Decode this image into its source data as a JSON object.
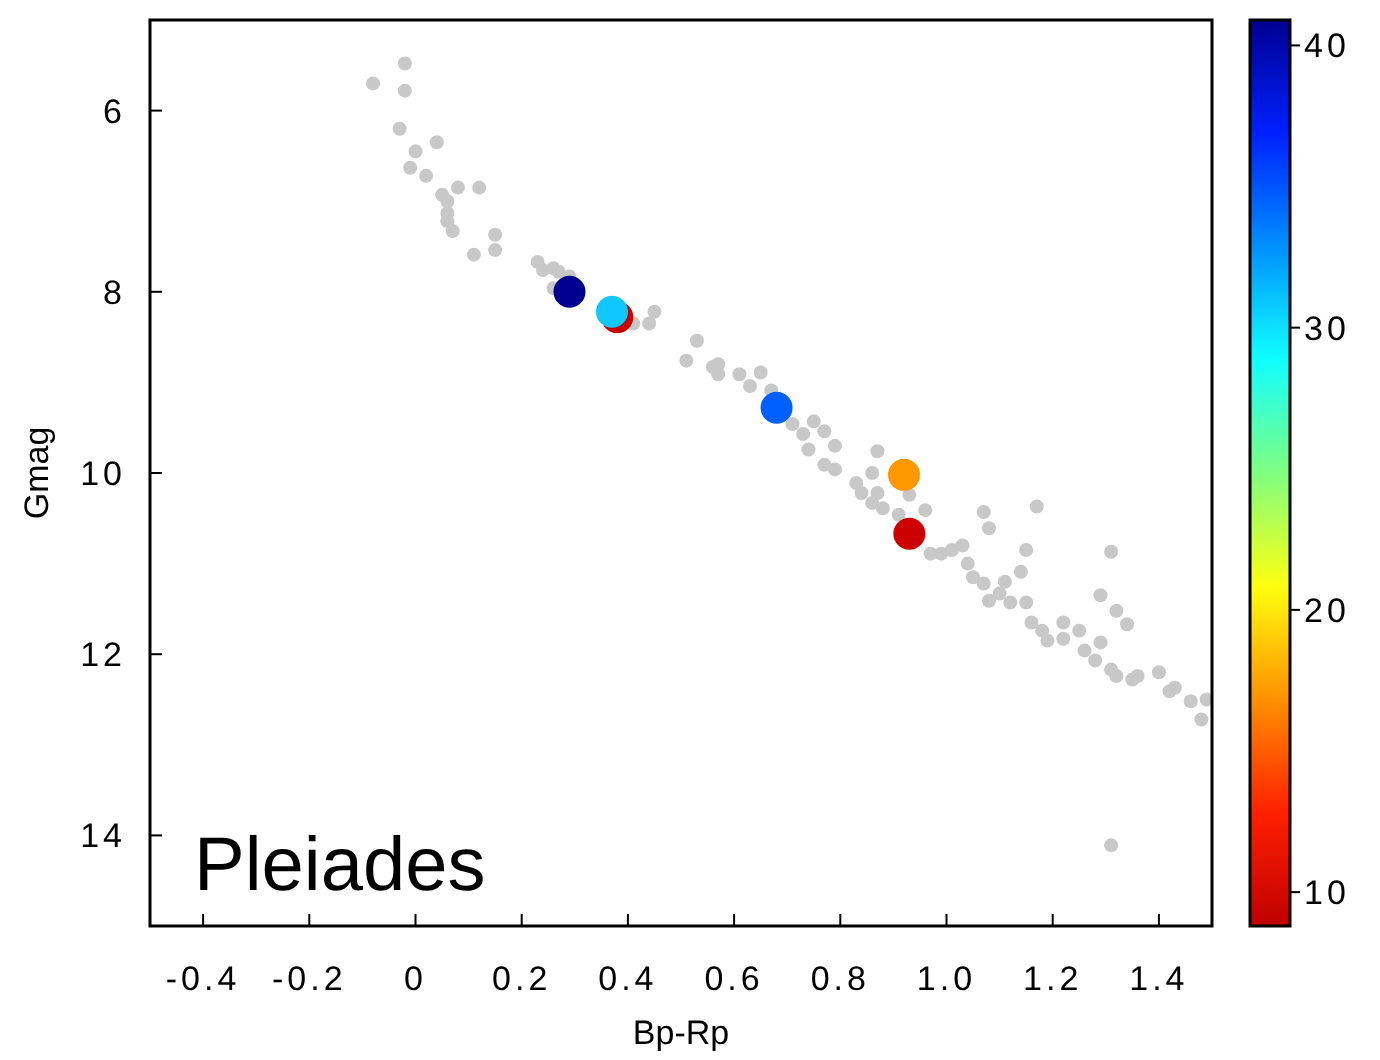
{
  "chart_data": {
    "type": "scatter",
    "xlabel": "Bp-Rp",
    "ylabel": "Gmag",
    "xlim": [
      -0.5,
      1.5
    ],
    "ylim": [
      15,
      5
    ],
    "xticks": [
      {
        "value": -0.4,
        "label": "-0.4"
      },
      {
        "value": -0.2,
        "label": "-0.2"
      },
      0,
      {
        "value": 0.2,
        "label": "0.2"
      },
      {
        "value": 0.4,
        "label": "0.4"
      },
      {
        "value": 0.6,
        "label": "0.6"
      },
      {
        "value": 0.8,
        "label": "0.8"
      },
      {
        "value": 1,
        "label": "1.0"
      },
      {
        "value": 1.2,
        "label": "1.2"
      },
      {
        "value": 1.4,
        "label": "1.4"
      }
    ],
    "yticks": [
      6,
      8,
      10,
      12,
      14
    ],
    "clim": [
      8.8,
      40.9
    ],
    "cticks": [
      10,
      20,
      30,
      40
    ],
    "marker": "circle",
    "grid": false,
    "annotations": [
      "Pleiades"
    ],
    "series": [
      {
        "color": "#c8c8c8",
        "x": [
          -0.08,
          -0.02,
          -0.02,
          -0.03,
          0.0,
          0.04,
          -0.01,
          0.02,
          0.08,
          0.12,
          0.05,
          0.06,
          0.06,
          0.06,
          0.07,
          0.15,
          0.11,
          0.15,
          0.23,
          0.24,
          0.26,
          0.27,
          0.29,
          0.26,
          0.41,
          0.44,
          0.45,
          0.53,
          0.51,
          0.56,
          0.57,
          0.57,
          0.61,
          0.65,
          0.63,
          0.67,
          0.71,
          0.73,
          0.75,
          0.77,
          0.79,
          0.74,
          0.77,
          0.79,
          0.87,
          0.86,
          0.83,
          0.84,
          0.86,
          0.88,
          0.87,
          0.91,
          0.93,
          0.96,
          0.97,
          0.99,
          1.01,
          1.03,
          1.04,
          1.05,
          1.07,
          1.07,
          1.08,
          1.11,
          1.1,
          1.08,
          1.14,
          1.15,
          1.17,
          1.12,
          1.15,
          1.16,
          1.18,
          1.19,
          1.22,
          1.22,
          1.25,
          1.26,
          1.29,
          1.28,
          1.29,
          1.31,
          1.32,
          1.34,
          1.31,
          1.32,
          1.35,
          1.36,
          1.4,
          1.42,
          1.43,
          1.46,
          1.49,
          1.48,
          1.31
        ],
        "values": [
          5.7,
          5.48,
          5.78,
          6.2,
          6.45,
          6.35,
          6.63,
          6.72,
          6.85,
          6.85,
          6.93,
          7.0,
          7.13,
          7.22,
          7.33,
          7.37,
          7.59,
          7.54,
          7.67,
          7.76,
          7.74,
          7.78,
          7.83,
          7.96,
          8.35,
          8.35,
          8.22,
          8.54,
          8.76,
          8.83,
          8.8,
          8.91,
          8.91,
          8.89,
          9.04,
          9.09,
          9.46,
          9.57,
          9.43,
          9.54,
          9.7,
          9.74,
          9.91,
          9.96,
          9.76,
          10.0,
          10.11,
          10.22,
          10.33,
          10.39,
          10.22,
          10.46,
          10.24,
          10.41,
          10.89,
          10.89,
          10.85,
          10.8,
          11.0,
          11.15,
          11.22,
          10.43,
          10.61,
          11.2,
          11.33,
          11.41,
          11.09,
          10.85,
          10.37,
          11.43,
          11.43,
          11.65,
          11.74,
          11.85,
          11.65,
          11.83,
          11.74,
          11.96,
          11.87,
          12.07,
          11.35,
          10.87,
          11.52,
          11.67,
          12.17,
          12.24,
          12.28,
          12.24,
          12.2,
          12.41,
          12.37,
          12.52,
          12.5,
          12.72,
          14.11
        ]
      },
      {
        "x": [
          0.29,
          0.38,
          0.37,
          0.68,
          0.92,
          0.93
        ],
        "values": [
          8.0,
          8.28,
          8.22,
          9.28,
          10.02,
          10.67
        ],
        "colors": [
          "#000090",
          "#c80000",
          "#10c8ff",
          "#0060ff",
          "#ff9800",
          "#cc0000"
        ]
      }
    ]
  }
}
